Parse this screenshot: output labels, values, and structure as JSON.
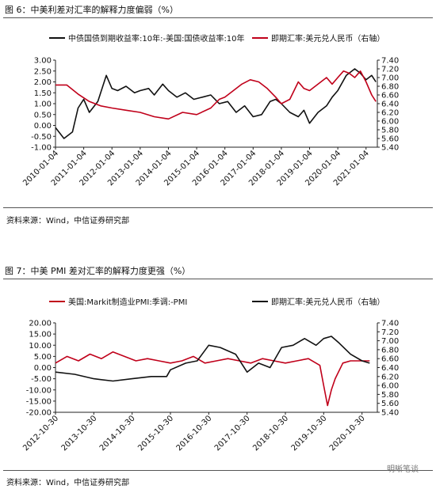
{
  "chart_data": [
    {
      "type": "line",
      "figure_title": "图 6：中美利差对汇率的解释力度偏弱（%）",
      "source": "资料来源：Wind，中信证券研究部",
      "x_ticks": [
        "2010-01-04",
        "2011-01-04",
        "2012-01-04",
        "2013-01-04",
        "2014-01-04",
        "2015-01-04",
        "2016-01-04",
        "2017-01-04",
        "2018-01-04",
        "2019-01-04",
        "2020-01-04",
        "2021-01-04"
      ],
      "ylim": [
        -1.0,
        3.0
      ],
      "y_ticks": [
        "3.00",
        "2.50",
        "2.00",
        "1.50",
        "1.00",
        "0.50",
        "0.00",
        "-0.50",
        "-1.00"
      ],
      "y2lim": [
        5.4,
        7.4
      ],
      "y2_ticks": [
        "7.40",
        "7.20",
        "7.00",
        "6.80",
        "6.60",
        "6.40",
        "6.20",
        "6.00",
        "5.80",
        "5.60",
        "5.40"
      ],
      "series": [
        {
          "name": "中债国债到期收益率:10年:-美国:国债收益率:10年",
          "axis": "left",
          "color": "#111111",
          "x": [
            0,
            0.3,
            0.6,
            0.8,
            1.0,
            1.2,
            1.5,
            1.8,
            2.0,
            2.2,
            2.5,
            2.8,
            3.0,
            3.3,
            3.5,
            3.8,
            4.0,
            4.3,
            4.6,
            4.9,
            5.2,
            5.5,
            5.8,
            6.1,
            6.4,
            6.7,
            7.0,
            7.3,
            7.6,
            7.8,
            8.0,
            8.3,
            8.6,
            8.8,
            9.0,
            9.3,
            9.6,
            9.8,
            10.0,
            10.3,
            10.6,
            10.8,
            11.0,
            11.2,
            11.35
          ],
          "values": [
            -0.1,
            -0.6,
            -0.3,
            0.8,
            1.2,
            0.6,
            1.1,
            2.3,
            1.7,
            1.6,
            1.8,
            1.5,
            1.6,
            1.7,
            1.4,
            1.9,
            1.6,
            1.3,
            1.5,
            1.2,
            1.3,
            1.4,
            1.0,
            1.1,
            0.6,
            0.9,
            0.4,
            0.5,
            1.1,
            1.2,
            1.0,
            0.6,
            0.4,
            0.7,
            0.1,
            0.6,
            0.9,
            1.3,
            1.6,
            2.3,
            2.6,
            2.4,
            2.1,
            2.3,
            2.0
          ]
        },
        {
          "name": "即期汇率:美元兑人民币（右轴）",
          "axis": "right",
          "color": "#c0001a",
          "x": [
            0,
            0.4,
            0.8,
            1.2,
            1.6,
            2.0,
            2.5,
            3.0,
            3.5,
            4.0,
            4.5,
            5.0,
            5.5,
            5.8,
            6.0,
            6.3,
            6.6,
            6.9,
            7.2,
            7.5,
            7.8,
            8.0,
            8.3,
            8.6,
            8.8,
            9.0,
            9.3,
            9.6,
            9.8,
            10.0,
            10.2,
            10.4,
            10.6,
            10.8,
            11.0,
            11.2,
            11.35
          ],
          "values": [
            6.83,
            6.83,
            6.62,
            6.45,
            6.35,
            6.3,
            6.25,
            6.2,
            6.1,
            6.05,
            6.2,
            6.15,
            6.3,
            6.5,
            6.55,
            6.7,
            6.85,
            6.95,
            6.9,
            6.75,
            6.55,
            6.4,
            6.5,
            6.9,
            6.75,
            6.7,
            6.85,
            7.0,
            6.85,
            7.0,
            7.15,
            7.1,
            7.0,
            7.15,
            6.9,
            6.6,
            6.45
          ]
        }
      ]
    },
    {
      "type": "line",
      "figure_title": "图 7：中美 PMI 差对汇率的解释力度更强（%）",
      "source": "资料来源：Wind，中信证券研究部",
      "x_ticks": [
        "2012-10-30",
        "2013-10-30",
        "2014-10-30",
        "2015-10-30",
        "2016-10-30",
        "2017-10-30",
        "2018-10-30",
        "2019-10-30",
        "2020-10-30"
      ],
      "ylim": [
        -20.0,
        20.0
      ],
      "y_ticks": [
        "20.00",
        "15.00",
        "10.00",
        "5.00",
        "0.00",
        "-5.00",
        "-10.00",
        "-15.00",
        "-20.00"
      ],
      "y2lim": [
        5.4,
        7.4
      ],
      "y2_ticks": [
        "7.40",
        "7.20",
        "7.00",
        "6.80",
        "6.60",
        "6.40",
        "6.20",
        "6.00",
        "5.80",
        "5.60",
        "5.40"
      ],
      "series": [
        {
          "name": "美国:Markit制造业PMI:季调:-PMI",
          "axis": "left",
          "color": "#c0001a",
          "x": [
            0,
            0.3,
            0.6,
            0.9,
            1.2,
            1.5,
            1.8,
            2.1,
            2.4,
            2.7,
            3.0,
            3.3,
            3.6,
            3.9,
            4.2,
            4.5,
            4.8,
            5.1,
            5.4,
            5.7,
            6.0,
            6.3,
            6.6,
            6.9,
            7.0,
            7.1,
            7.2,
            7.3,
            7.5,
            7.7,
            8.0,
            8.2
          ],
          "values": [
            2,
            5,
            3,
            6,
            4,
            7,
            5,
            3,
            4,
            3,
            2,
            3,
            5,
            2,
            3,
            4,
            3,
            2,
            4,
            3,
            2,
            3,
            4,
            1,
            -8,
            -17,
            -10,
            -5,
            2,
            3,
            3,
            3
          ]
        },
        {
          "name": "即期汇率:美元兑人民币（右轴）",
          "axis": "right",
          "color": "#111111",
          "x": [
            0,
            0.5,
            1.0,
            1.5,
            2.0,
            2.5,
            2.9,
            3.0,
            3.4,
            3.7,
            4.0,
            4.3,
            4.7,
            5.0,
            5.3,
            5.6,
            5.9,
            6.2,
            6.5,
            6.8,
            7.0,
            7.2,
            7.4,
            7.7,
            8.0,
            8.2
          ],
          "values": [
            6.3,
            6.25,
            6.15,
            6.1,
            6.15,
            6.2,
            6.2,
            6.35,
            6.5,
            6.55,
            6.9,
            6.85,
            6.7,
            6.3,
            6.5,
            6.4,
            6.85,
            6.9,
            7.05,
            6.9,
            7.05,
            7.1,
            6.95,
            6.7,
            6.55,
            6.5
          ]
        }
      ]
    }
  ],
  "watermark": "明晰笔谈"
}
